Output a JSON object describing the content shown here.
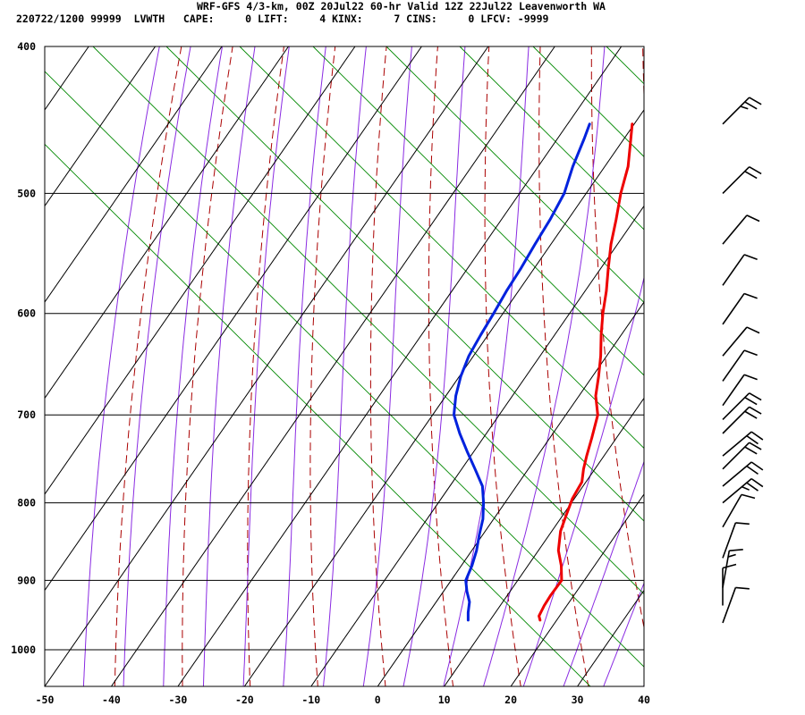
{
  "header": {
    "title": "WRF-GFS 4/3-km, 00Z 20Jul22 60-hr Valid 12Z 22Jul22 Leavenworth WA",
    "stats": "220722/1200 99999  LVWTH   CAPE:     0 LIFT:     4 KINX:     7 CINS:     0 LFCV: -9999"
  },
  "colors": {
    "temperature": "#ee0000",
    "dewpoint": "#0022dd",
    "isotherm": "#000000",
    "dry_adiabat": "#aa0000",
    "moist_adiabat": "#8a2be2",
    "mixing_ratio": "#008800"
  },
  "chart_data": {
    "type": "line",
    "subtype": "skew-T log-P sounding",
    "x_axis": {
      "ticks": [
        -50,
        -40,
        -30,
        -20,
        -10,
        0,
        10,
        20,
        30,
        40
      ],
      "range": [
        -50,
        40
      ],
      "unit": ""
    },
    "y_axis": {
      "ticks": [
        400,
        500,
        600,
        700,
        800,
        900,
        1000
      ],
      "range": [
        400,
        1050
      ],
      "scale": "log",
      "unit": ""
    },
    "grid": true,
    "series": [
      {
        "id": "temperature",
        "points": [
          [
            956,
            17.5
          ],
          [
            950,
            16.9
          ],
          [
            935,
            16.6
          ],
          [
            920,
            16.5
          ],
          [
            900,
            16.6
          ],
          [
            880,
            15.0
          ],
          [
            860,
            13.0
          ],
          [
            835,
            11.3
          ],
          [
            815,
            10.5
          ],
          [
            795,
            9.7
          ],
          [
            775,
            9.4
          ],
          [
            760,
            8.3
          ],
          [
            745,
            7.4
          ],
          [
            725,
            6.3
          ],
          [
            700,
            4.8
          ],
          [
            680,
            2.5
          ],
          [
            660,
            0.9
          ],
          [
            640,
            -0.9
          ],
          [
            620,
            -3.0
          ],
          [
            600,
            -5.0
          ],
          [
            580,
            -6.8
          ],
          [
            560,
            -8.9
          ],
          [
            540,
            -11.0
          ],
          [
            520,
            -12.8
          ],
          [
            500,
            -14.8
          ],
          [
            480,
            -16.5
          ],
          [
            460,
            -19.0
          ],
          [
            450,
            -20.3
          ]
        ]
      },
      {
        "id": "dewpoint",
        "points": [
          [
            956,
            6.7
          ],
          [
            945,
            5.9
          ],
          [
            930,
            5.0
          ],
          [
            915,
            3.5
          ],
          [
            900,
            2.2
          ],
          [
            880,
            1.6
          ],
          [
            860,
            0.7
          ],
          [
            840,
            -0.5
          ],
          [
            820,
            -1.6
          ],
          [
            800,
            -3.2
          ],
          [
            780,
            -5.1
          ],
          [
            760,
            -8.0
          ],
          [
            740,
            -11.0
          ],
          [
            720,
            -14.0
          ],
          [
            700,
            -16.8
          ],
          [
            680,
            -18.5
          ],
          [
            660,
            -19.8
          ],
          [
            640,
            -20.7
          ],
          [
            620,
            -21.1
          ],
          [
            600,
            -21.4
          ],
          [
            580,
            -21.8
          ],
          [
            560,
            -22.0
          ],
          [
            540,
            -22.4
          ],
          [
            520,
            -22.7
          ],
          [
            500,
            -23.3
          ],
          [
            480,
            -24.8
          ],
          [
            460,
            -26.0
          ],
          [
            450,
            -26.7
          ]
        ]
      }
    ],
    "wind_barbs": [
      {
        "p": 450,
        "dir": 225,
        "speed": 25
      },
      {
        "p": 500,
        "dir": 225,
        "speed": 20
      },
      {
        "p": 540,
        "dir": 220,
        "speed": 10
      },
      {
        "p": 575,
        "dir": 215,
        "speed": 10
      },
      {
        "p": 610,
        "dir": 215,
        "speed": 10
      },
      {
        "p": 640,
        "dir": 220,
        "speed": 10
      },
      {
        "p": 665,
        "dir": 215,
        "speed": 10
      },
      {
        "p": 690,
        "dir": 215,
        "speed": 10
      },
      {
        "p": 705,
        "dir": 225,
        "speed": 20
      },
      {
        "p": 720,
        "dir": 225,
        "speed": 20
      },
      {
        "p": 745,
        "dir": 230,
        "speed": 20
      },
      {
        "p": 760,
        "dir": 225,
        "speed": 20
      },
      {
        "p": 780,
        "dir": 230,
        "speed": 20
      },
      {
        "p": 800,
        "dir": 230,
        "speed": 25
      },
      {
        "p": 830,
        "dir": 210,
        "speed": 10
      },
      {
        "p": 870,
        "dir": 200,
        "speed": 10
      },
      {
        "p": 910,
        "dir": 190,
        "speed": 15
      },
      {
        "p": 935,
        "dir": 180,
        "speed": 10
      },
      {
        "p": 960,
        "dir": 200,
        "speed": 10
      }
    ]
  }
}
